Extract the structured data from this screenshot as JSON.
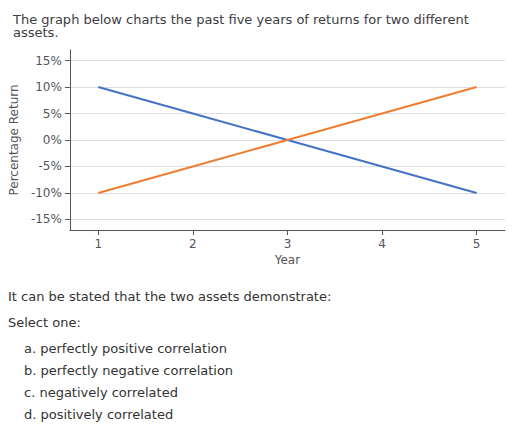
{
  "chart_data": {
    "type": "line",
    "title": "The graph below charts the past five years of returns for two different assets.",
    "x": [
      1,
      2,
      3,
      4,
      5
    ],
    "series": [
      {
        "color": "#4472C4",
        "values": [
          10,
          5,
          0,
          -5,
          -10
        ]
      },
      {
        "color": "#ED7D31",
        "values": [
          -10,
          -5,
          0,
          5,
          10
        ]
      }
    ],
    "xlabel": "Year",
    "ylabel": "Percentage Return",
    "xlim": [
      0.7,
      5.3
    ],
    "xticks": [
      1,
      2,
      3,
      4,
      5
    ],
    "ylim": [
      -17,
      17
    ],
    "yticks": [
      {
        "value": -15,
        "label": "-15%"
      },
      {
        "value": -10,
        "label": "-10%"
      },
      {
        "value": -5,
        "label": "-5%"
      },
      {
        "value": 0,
        "label": "0%"
      },
      {
        "value": 5,
        "label": "5%"
      },
      {
        "value": 10,
        "label": "10%"
      },
      {
        "value": 15,
        "label": "15%"
      }
    ],
    "grid": true,
    "annotations": [
      "It can be stated that the two assets demonstrate:",
      "Select one:",
      "a. perfectly positive correlation",
      "b. perfectly negative correlation",
      "c. negatively correlated",
      "d. positively correlated"
    ]
  }
}
